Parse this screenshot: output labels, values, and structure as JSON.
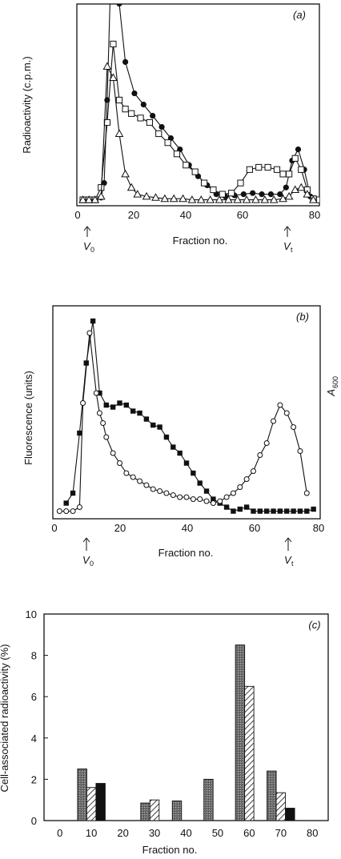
{
  "chart_data": [
    {
      "panel": "a",
      "type": "line",
      "panel_label": "(a)",
      "xlabel": "Fraction no.",
      "ylabel": "Radioactivity (c.p.m.)",
      "xlim": [
        0,
        80
      ],
      "x_ticks": [
        "0",
        "20",
        "40",
        "60",
        "80"
      ],
      "markers": {
        "v0": "V",
        "v0_sub": "0",
        "vt": "V",
        "vt_sub": "t",
        "v0_x": 10,
        "vt_x": 71
      },
      "series": [
        {
          "marker": "filled-circle",
          "x": [
            2,
            4,
            6,
            8,
            9,
            10,
            11,
            13,
            14,
            16,
            19,
            22,
            25,
            28,
            31,
            34,
            37,
            40,
            43,
            46,
            49,
            52,
            55,
            58,
            61,
            64,
            67,
            69,
            71,
            73,
            75,
            77,
            79
          ],
          "y": [
            0.5,
            0.5,
            0.5,
            1.5,
            8,
            45,
            92,
            98,
            88,
            62,
            48,
            43,
            38,
            33,
            28,
            23,
            16,
            11,
            7,
            3,
            2,
            2.5,
            3,
            3.5,
            3,
            3,
            3,
            6,
            18,
            23,
            14,
            2,
            0.5
          ]
        },
        {
          "marker": "open-square",
          "x": [
            2,
            4,
            6,
            8,
            10,
            12,
            14,
            16,
            18,
            21,
            24,
            27,
            30,
            33,
            36,
            39,
            42,
            45,
            48,
            51,
            54,
            57,
            60,
            63,
            66,
            68,
            70,
            72,
            74,
            76,
            78,
            80
          ],
          "y": [
            0.5,
            0.5,
            0.5,
            6,
            35,
            70,
            45,
            41,
            39,
            37,
            35,
            30,
            26,
            21,
            16,
            13,
            8,
            5,
            3,
            3.5,
            8,
            14,
            15,
            15,
            14,
            12,
            12,
            19,
            14,
            5,
            1,
            0.5
          ]
        },
        {
          "marker": "open-triangle",
          "x": [
            2,
            4,
            6,
            8,
            10,
            12,
            14,
            16,
            18,
            20,
            23,
            26,
            29,
            32,
            35,
            38,
            41,
            44,
            47,
            50,
            53,
            56,
            59,
            62,
            65,
            68,
            70,
            72,
            74,
            76,
            78
          ],
          "y": [
            0.5,
            0.5,
            0.5,
            2,
            60,
            55,
            30,
            12,
            6,
            3,
            2,
            1.5,
            1,
            1,
            1,
            0.5,
            0.5,
            0.5,
            0.5,
            0.5,
            0.5,
            0.5,
            0.5,
            0.5,
            0.5,
            1,
            2,
            5,
            6,
            3,
            0.5
          ]
        }
      ]
    },
    {
      "panel": "b",
      "type": "line",
      "panel_label": "(b)",
      "xlabel": "Fraction no.",
      "ylabel": "Fluorescence (units)",
      "ylabel_right": "A",
      "ylabel_right_sub": "600",
      "xlim": [
        0,
        80
      ],
      "x_ticks": [
        "0",
        "20",
        "40",
        "60",
        "80"
      ],
      "markers": {
        "v0": "V",
        "v0_sub": "0",
        "vt": "V",
        "vt_sub": "t",
        "v0_x": 10,
        "vt_x": 71
      },
      "series": [
        {
          "marker": "filled-square",
          "x": [
            4,
            6,
            8,
            10,
            12,
            14,
            16,
            18,
            20,
            22,
            24,
            26,
            28,
            30,
            32,
            34,
            36,
            38,
            40,
            42,
            44,
            46,
            48,
            50,
            52,
            54,
            56,
            58,
            60,
            62,
            64,
            66,
            68,
            70,
            72,
            74,
            76,
            78
          ],
          "y": [
            5,
            10,
            40,
            75,
            96,
            60,
            54,
            53,
            55,
            54,
            51,
            50,
            47,
            44,
            43,
            38,
            33,
            30,
            25,
            20,
            15,
            11,
            7,
            5,
            3,
            1,
            2,
            3,
            1,
            1,
            1,
            1,
            1,
            1,
            1,
            1,
            1,
            2
          ]
        },
        {
          "marker": "open-circle",
          "x": [
            2,
            4,
            6,
            8,
            9,
            11,
            13,
            14,
            15,
            16,
            18,
            20,
            22,
            24,
            26,
            28,
            30,
            32,
            34,
            36,
            38,
            40,
            42,
            44,
            46,
            48,
            50,
            52,
            54,
            56,
            58,
            60,
            62,
            64,
            66,
            68,
            70,
            72,
            74,
            76
          ],
          "y": [
            1,
            1,
            1,
            3,
            55,
            90,
            60,
            50,
            45,
            38,
            30,
            25,
            20,
            18,
            16,
            14,
            12,
            11,
            10,
            9,
            8,
            8,
            7,
            7,
            6,
            5,
            6,
            8,
            10,
            13,
            17,
            21,
            29,
            35,
            46,
            54,
            50,
            43,
            31,
            10
          ]
        }
      ]
    },
    {
      "panel": "c",
      "type": "bar",
      "panel_label": "(c)",
      "xlabel": "Fraction no.",
      "ylabel": "Cell-associated radioactivity (%)",
      "xlim": [
        -5,
        85
      ],
      "ylim": [
        0,
        10
      ],
      "x_ticks": [
        "0",
        "10",
        "20",
        "30",
        "40",
        "50",
        "60",
        "70",
        "80"
      ],
      "y_ticks": [
        "0",
        "2",
        "4",
        "6",
        "8",
        "10"
      ],
      "bar_patterns": [
        "stippled",
        "hatched",
        "solid"
      ],
      "groups": [
        {
          "x": 10,
          "values": [
            2.5,
            1.6,
            1.8
          ]
        },
        {
          "x": 30,
          "values": [
            0.85,
            1.0,
            null
          ]
        },
        {
          "x": 40,
          "values": [
            0.95,
            null,
            null
          ]
        },
        {
          "x": 50,
          "values": [
            2.0,
            null,
            null
          ]
        },
        {
          "x": 60,
          "values": [
            8.5,
            6.5,
            null
          ]
        },
        {
          "x": 70,
          "values": [
            2.4,
            1.35,
            0.6
          ]
        }
      ]
    }
  ],
  "colors": {
    "ink": "#111111",
    "stipple": "#7a7a7a",
    "background": "#ffffff"
  }
}
